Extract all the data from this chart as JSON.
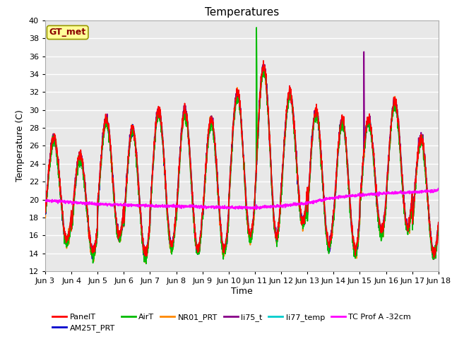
{
  "title": "Temperatures",
  "xlabel": "Time",
  "ylabel": "Temperature (C)",
  "ylim": [
    12,
    40
  ],
  "yticks": [
    12,
    14,
    16,
    18,
    20,
    22,
    24,
    26,
    28,
    30,
    32,
    34,
    36,
    38,
    40
  ],
  "xtick_labels": [
    "Jun 3",
    "Jun 4",
    "Jun 5",
    "Jun 6",
    "Jun 7",
    "Jun 8",
    "Jun 9",
    "Jun 10",
    "Jun 11",
    "Jun 12",
    "Jun 13",
    "Jun 14",
    "Jun 15",
    "Jun 16",
    "Jun 17",
    "Jun 18"
  ],
  "annotation_text": "GT_met",
  "annotation_color": "#8B0000",
  "annotation_bg": "#FFFF99",
  "annotation_edge": "#999900",
  "series_colors": {
    "PanelT": "#FF0000",
    "AM25T_PRT": "#0000CC",
    "AirT": "#00BB00",
    "NR01_PRT": "#FF8800",
    "li75_t": "#880088",
    "li77_temp": "#00CCCC",
    "TC Prof A -32cm": "#FF00FF"
  },
  "bg_color": "#E8E8E8",
  "grid_color": "#FFFFFF",
  "fig_bg": "#FFFFFF",
  "title_fontsize": 11,
  "label_fontsize": 9,
  "tick_fontsize": 8,
  "legend_fontsize": 8
}
